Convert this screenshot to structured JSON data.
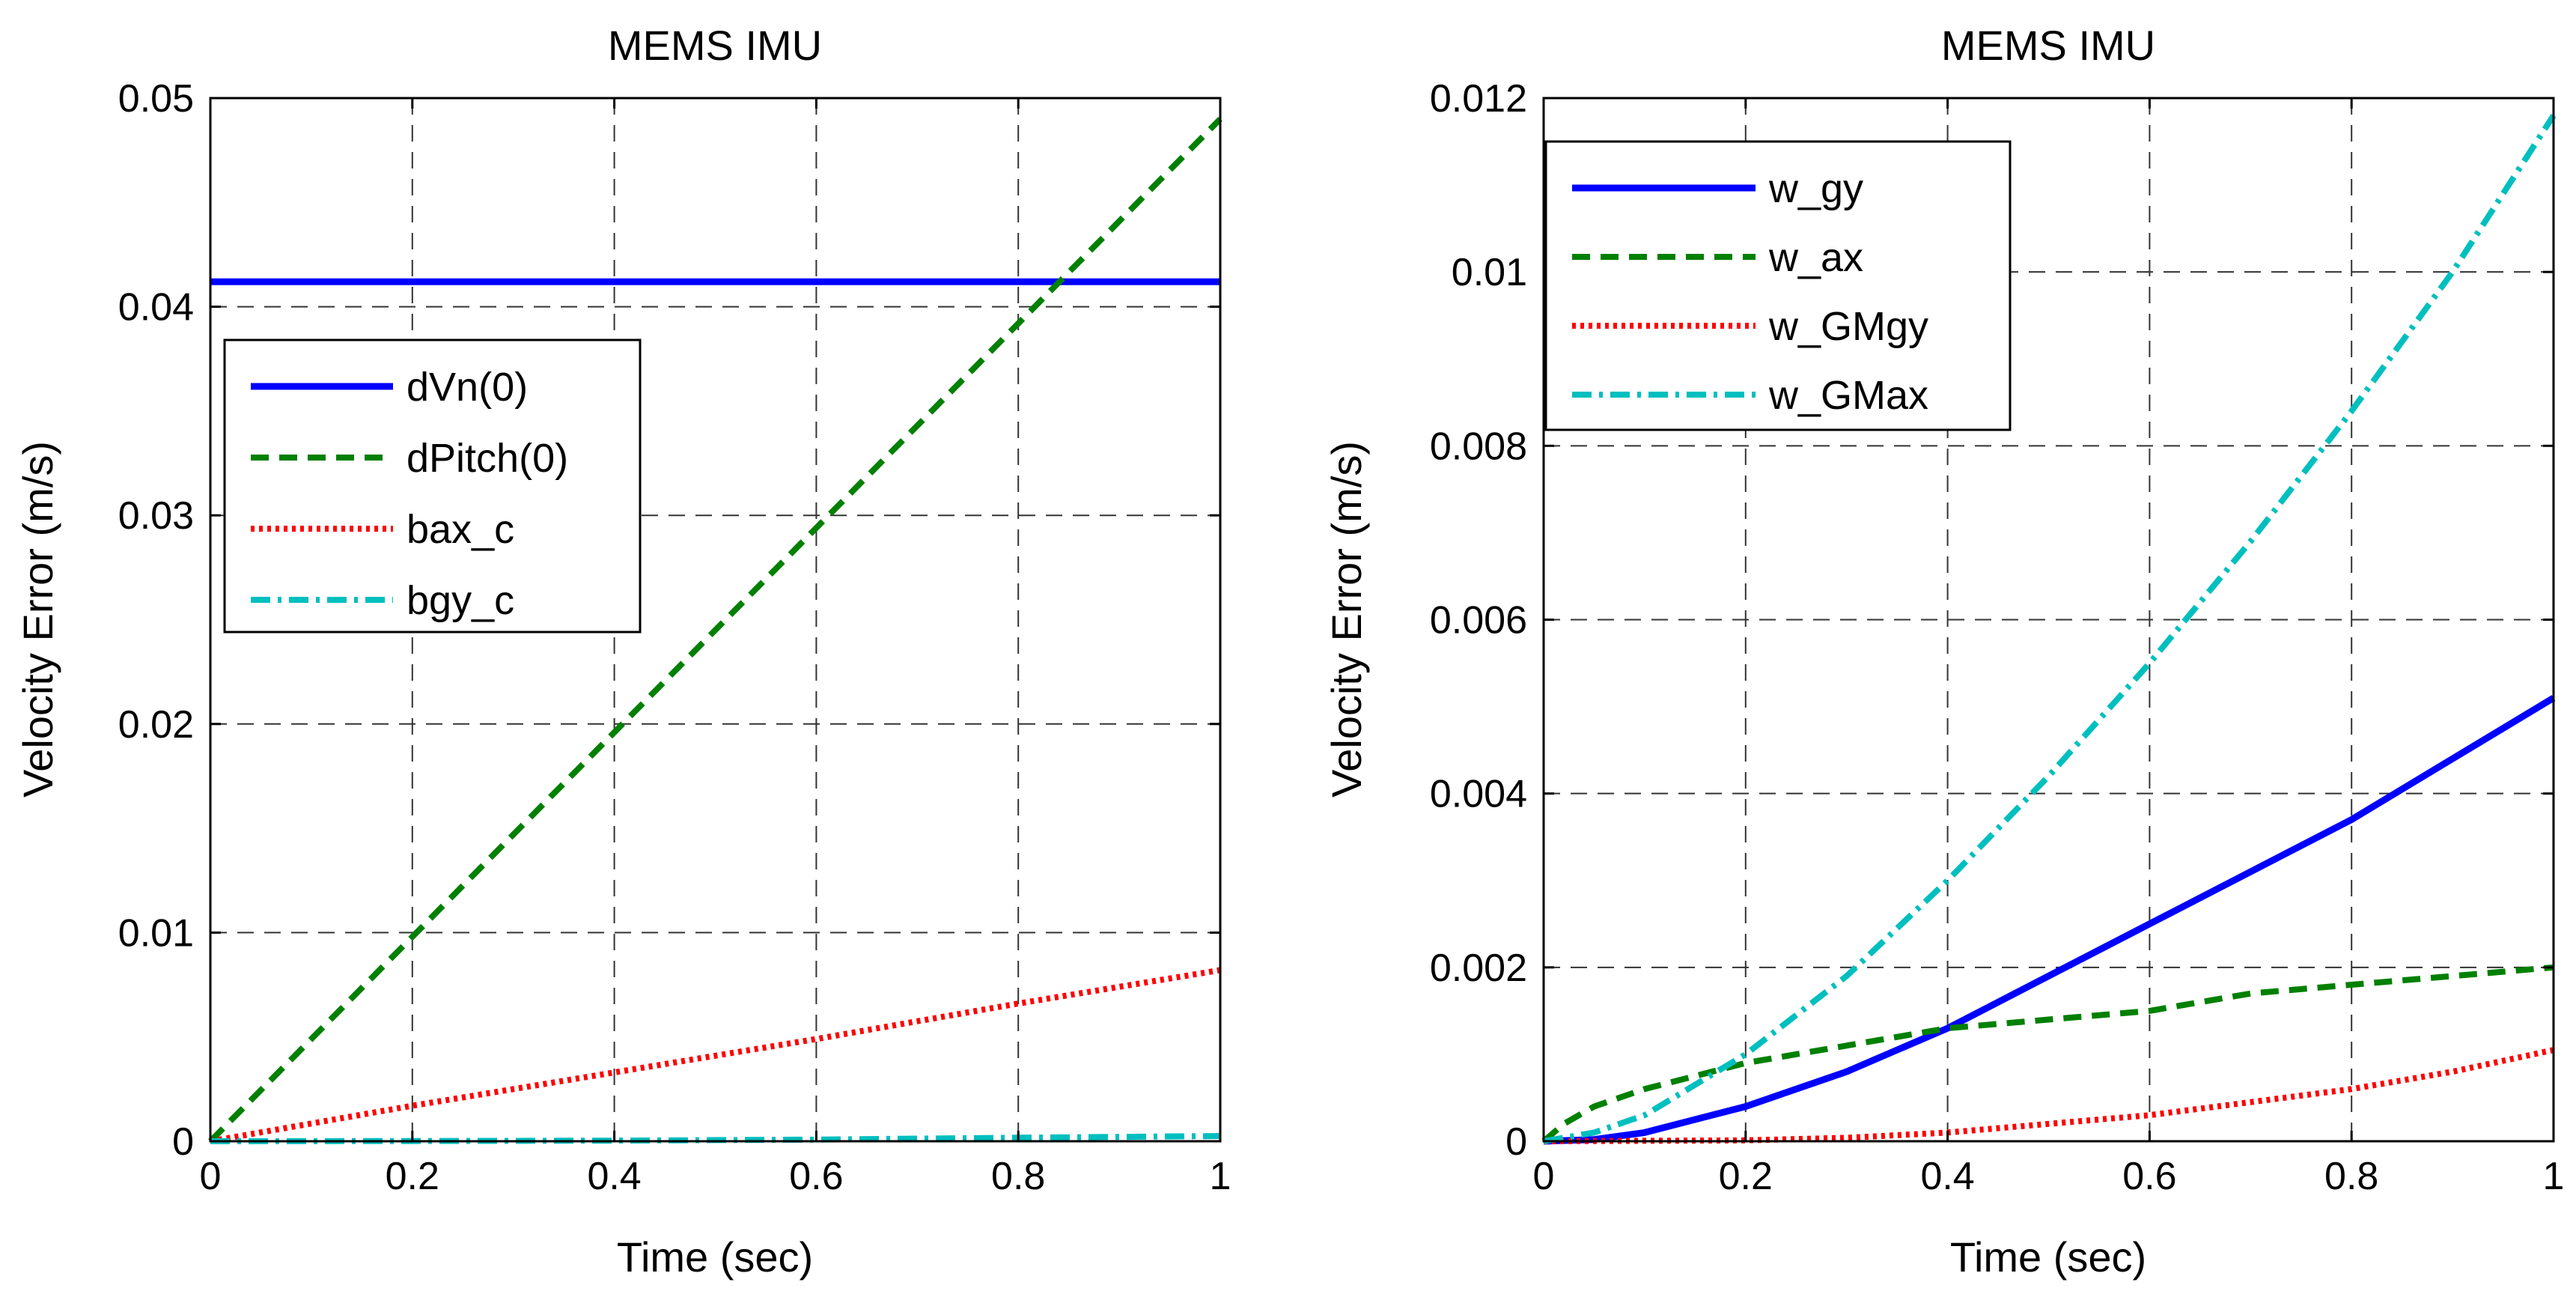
{
  "chart_data": [
    {
      "type": "line",
      "title": "MEMS IMU",
      "xlabel": "Time (sec)",
      "ylabel": "Velocity Error (m/s)",
      "xlim": [
        0,
        1
      ],
      "ylim": [
        0,
        0.05
      ],
      "xticks": [
        0,
        0.2,
        0.4,
        0.6,
        0.8,
        1
      ],
      "xtick_labels": [
        "0",
        "0.2",
        "0.4",
        "0.6",
        "0.8",
        "1"
      ],
      "yticks": [
        0,
        0.01,
        0.02,
        0.03,
        0.04,
        0.05
      ],
      "ytick_labels": [
        "0",
        "0.01",
        "0.02",
        "0.03",
        "0.04",
        "0.05"
      ],
      "grid": true,
      "legend_position": "upper-left",
      "series": [
        {
          "name": "dVn(0)",
          "color": "#0000ff",
          "style": "solid",
          "x": [
            0,
            1
          ],
          "y": [
            0.0412,
            0.0412
          ]
        },
        {
          "name": "dPitch(0)",
          "color": "#008000",
          "style": "dashed",
          "x": [
            0,
            0.2,
            0.4,
            0.6,
            0.8,
            1
          ],
          "y": [
            0,
            0.0098,
            0.0196,
            0.0294,
            0.0392,
            0.049
          ]
        },
        {
          "name": "bax_c",
          "color": "#ff0000",
          "style": "dotted",
          "x": [
            0,
            0.2,
            0.4,
            0.6,
            0.8,
            1
          ],
          "y": [
            0,
            0.0017,
            0.0033,
            0.0049,
            0.0066,
            0.0082
          ]
        },
        {
          "name": "bgy_c",
          "color": "#00bfbf",
          "style": "dashdot",
          "x": [
            0,
            0.2,
            0.4,
            0.6,
            0.8,
            1
          ],
          "y": [
            0,
            1e-05,
            3e-05,
            8e-05,
            0.00017,
            0.00025
          ]
        }
      ]
    },
    {
      "type": "line",
      "title": "MEMS IMU",
      "xlabel": "Time (sec)",
      "ylabel": "Velocity Error (m/s)",
      "xlim": [
        0,
        1
      ],
      "ylim": [
        0,
        0.012
      ],
      "xticks": [
        0,
        0.2,
        0.4,
        0.6,
        0.8,
        1
      ],
      "xtick_labels": [
        "0",
        "0.2",
        "0.4",
        "0.6",
        "0.8",
        "1"
      ],
      "yticks": [
        0,
        0.002,
        0.004,
        0.006,
        0.008,
        0.01,
        0.012
      ],
      "ytick_labels": [
        "0",
        "0.002",
        "0.004",
        "0.006",
        "0.008",
        "0.01",
        "0.012"
      ],
      "grid": true,
      "legend_position": "upper-left",
      "series": [
        {
          "name": "w_gy",
          "color": "#0000ff",
          "style": "solid",
          "x": [
            0,
            0.05,
            0.1,
            0.2,
            0.3,
            0.4,
            0.5,
            0.6,
            0.7,
            0.8,
            0.9,
            1
          ],
          "y": [
            0,
            2e-05,
            0.0001,
            0.0004,
            0.0008,
            0.0013,
            0.0019,
            0.0025,
            0.0031,
            0.0037,
            0.0044,
            0.0051
          ]
        },
        {
          "name": "w_ax",
          "color": "#008000",
          "style": "dashed",
          "x": [
            0,
            0.02,
            0.05,
            0.1,
            0.2,
            0.3,
            0.4,
            0.5,
            0.6,
            0.7,
            0.8,
            0.9,
            1
          ],
          "y": [
            0,
            0.0002,
            0.0004,
            0.0006,
            0.0009,
            0.0011,
            0.0013,
            0.0014,
            0.0015,
            0.0017,
            0.0018,
            0.0019,
            0.002
          ]
        },
        {
          "name": "w_GMgy",
          "color": "#ff0000",
          "style": "dotted",
          "x": [
            0,
            0.2,
            0.3,
            0.4,
            0.5,
            0.6,
            0.7,
            0.8,
            0.9,
            1
          ],
          "y": [
            0,
            1e-05,
            4e-05,
            0.0001,
            0.0002,
            0.0003,
            0.00045,
            0.0006,
            0.0008,
            0.00105
          ]
        },
        {
          "name": "w_GMax",
          "color": "#00bfbf",
          "style": "dashdot",
          "x": [
            0,
            0.05,
            0.1,
            0.2,
            0.3,
            0.4,
            0.5,
            0.6,
            0.7,
            0.8,
            0.9,
            1
          ],
          "y": [
            0,
            0.0001,
            0.0003,
            0.001,
            0.0019,
            0.003,
            0.0042,
            0.0055,
            0.0069,
            0.0084,
            0.01,
            0.0118
          ]
        }
      ]
    }
  ]
}
